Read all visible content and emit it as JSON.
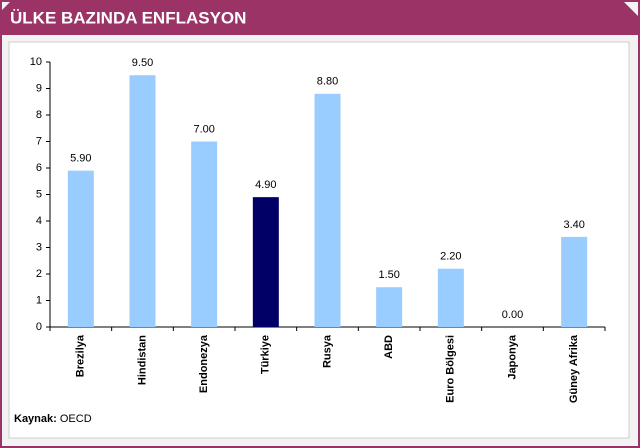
{
  "chart_data": {
    "type": "bar",
    "title": "ÜLKE BAZINDA ENFLASYON",
    "categories": [
      "Brezilya",
      "Hindistan",
      "Endonezya",
      "Türkiye",
      "Rusya",
      "ABD",
      "Euro Bölgesi",
      "Japonya",
      "Güney Afrika"
    ],
    "values": [
      5.9,
      9.5,
      7.0,
      4.9,
      8.8,
      1.5,
      2.2,
      0.0,
      3.4
    ],
    "value_labels": [
      "5.90",
      "9.50",
      "7.00",
      "4.90",
      "8.80",
      "1.50",
      "2.20",
      "0.00",
      "3.40"
    ],
    "colors": [
      "#99ccff",
      "#99ccff",
      "#99ccff",
      "#000066",
      "#99ccff",
      "#99ccff",
      "#99ccff",
      "#99ccff",
      "#99ccff"
    ],
    "ylim": [
      0,
      10
    ],
    "yticks": [
      0,
      1,
      2,
      3,
      4,
      5,
      6,
      7,
      8,
      9,
      10
    ],
    "grid": false,
    "source_label": "Kaynak:",
    "source": "OECD"
  }
}
